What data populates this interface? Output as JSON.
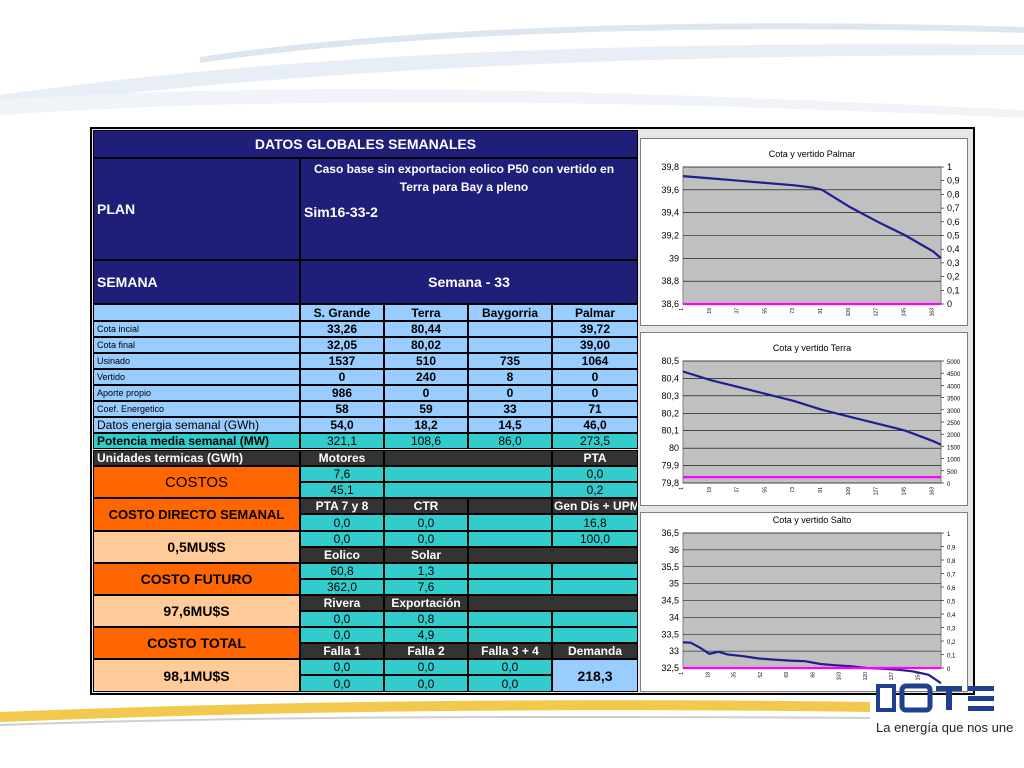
{
  "colors": {
    "navy": "#1f1f7a",
    "light_blue": "#99ccff",
    "teal": "#33cccc",
    "dark_gray": "#333333",
    "orange": "#ff6600",
    "peach": "#ffcc99",
    "series_blue": "#1f1f8f",
    "series_magenta": "#ff00ff",
    "plot_bg": "#c0c0c0"
  },
  "table": {
    "title": "DATOS GLOBALES SEMANALES",
    "plan_label": "PLAN",
    "plan_value": "Sim16-33-2",
    "plan_desc": "Caso base sin exportacion eolico P50 con vertido en Terra para Bay a pleno",
    "semana_label": "SEMANA",
    "semana_value": "Semana - 33",
    "plants": [
      "S. Grande",
      "Terra",
      "Baygorria",
      "Palmar"
    ],
    "rows": [
      {
        "label": "Cota incial",
        "values": [
          "33,26",
          "80,44",
          "",
          "39,72"
        ]
      },
      {
        "label": "Cota final",
        "values": [
          "32,05",
          "80,02",
          "",
          "39,00"
        ]
      },
      {
        "label": "Usinado",
        "values": [
          "1537",
          "510",
          "735",
          "1064"
        ]
      },
      {
        "label": "Vertido",
        "values": [
          "0",
          "240",
          "8",
          "0"
        ]
      },
      {
        "label": "Aporte propio",
        "values": [
          "986",
          "0",
          "0",
          "0"
        ]
      },
      {
        "label": "Coef. Energetico",
        "values": [
          "58",
          "59",
          "33",
          "71"
        ]
      },
      {
        "label": "Datos energia semanal  (GWh)",
        "values": [
          "54,0",
          "18,2",
          "14,5",
          "46,0"
        ]
      },
      {
        "label": "Potencia media semanal (MW)",
        "values": [
          "321,1",
          "108,6",
          "86,0",
          "273,5"
        ]
      }
    ],
    "termicas_label": "Unidades termicas (GWh)",
    "motores_label": "Motores",
    "pta_label": "PTA",
    "motores_values": [
      "7,6",
      "45,1"
    ],
    "pta_values": [
      "0,0",
      "0,2"
    ],
    "costos_label": "COSTOS",
    "costo_directo_label": "COSTO DIRECTO SEMANAL",
    "costo_directo_value": "0,5MU$S",
    "costo_futuro_label": "COSTO FUTURO",
    "costo_futuro_value": "97,6MU$S",
    "costo_total_label": "COSTO TOTAL",
    "costo_total_value": "98,1MU$S",
    "pta78_label": "PTA 7 y 8",
    "ctr_label": "CTR",
    "gendis_label": "Gen Dis + UPM",
    "pta78_values": [
      "0,0",
      "0,0"
    ],
    "ctr_values": [
      "0,0",
      "0,0"
    ],
    "gendis_values": [
      "16,8",
      "100,0"
    ],
    "eolico_label": "Eolico",
    "solar_label": "Solar",
    "eolico_values": [
      "60,8",
      "362,0"
    ],
    "solar_values": [
      "1,3",
      "7,6"
    ],
    "rivera_label": "Rivera",
    "export_label": "Exportación",
    "rivera_values": [
      "0,0",
      "0,0"
    ],
    "export_values": [
      "0,8",
      "4,9"
    ],
    "falla1_label": "Falla 1",
    "falla2_label": "Falla 2",
    "falla34_label": "Falla 3 + 4",
    "demanda_label": "Demanda",
    "falla1_values": [
      "0,0",
      "0,0"
    ],
    "falla2_values": [
      "0,0",
      "0,0"
    ],
    "falla34_values": [
      "0,0",
      "0,0"
    ],
    "demanda_value": "218,3"
  },
  "brand": {
    "tagline": "La energía que nos une"
  },
  "chart_data": [
    {
      "type": "line",
      "title": "Cota y vertido  Palmar",
      "ylim": [
        38.6,
        39.8
      ],
      "yticks": [
        "39,8",
        "39,6",
        "39,4",
        "39,2",
        "39",
        "38,8",
        "38,6"
      ],
      "y2lim": [
        0,
        1
      ],
      "y2ticks": [
        "1",
        "0,9",
        "0,8",
        "0,7",
        "0,6",
        "0,5",
        "0,4",
        "0,3",
        "0,2",
        "0,1",
        "0"
      ],
      "xlim": [
        1,
        168
      ],
      "xticks": [
        "1",
        "19",
        "37",
        "55",
        "73",
        "91",
        "109",
        "127",
        "145",
        "163"
      ],
      "grid": true,
      "series": [
        {
          "axis": "y",
          "color": "#1f1f8f",
          "x": [
            1,
            19,
            37,
            55,
            73,
            85,
            91,
            109,
            127,
            145,
            163,
            168
          ],
          "values": [
            39.72,
            39.7,
            39.68,
            39.66,
            39.64,
            39.62,
            39.6,
            39.45,
            39.32,
            39.2,
            39.06,
            39.0
          ]
        },
        {
          "axis": "y2",
          "color": "#ff00ff",
          "x": [
            1,
            168
          ],
          "values": [
            0,
            0
          ]
        }
      ]
    },
    {
      "type": "line",
      "title": "Cota y vertido Terra",
      "ylim": [
        79.8,
        80.5
      ],
      "yticks": [
        "80,5",
        "80,4",
        "80,3",
        "80,2",
        "80,1",
        "80",
        "79,9",
        "79,8"
      ],
      "y2lim": [
        0,
        5000
      ],
      "y2ticks": [
        "5000",
        "4500",
        "4000",
        "3500",
        "3000",
        "2500",
        "2000",
        "1500",
        "1000",
        "500",
        "0"
      ],
      "xlim": [
        1,
        168
      ],
      "xticks": [
        "1",
        "19",
        "37",
        "55",
        "73",
        "91",
        "109",
        "127",
        "145",
        "163"
      ],
      "grid": true,
      "series": [
        {
          "axis": "y",
          "color": "#1f1f8f",
          "x": [
            1,
            19,
            37,
            55,
            73,
            91,
            109,
            127,
            145,
            163,
            168
          ],
          "values": [
            80.44,
            80.39,
            80.35,
            80.31,
            80.27,
            80.22,
            80.18,
            80.14,
            80.1,
            80.04,
            80.02
          ]
        },
        {
          "axis": "y2",
          "color": "#ff00ff",
          "x": [
            1,
            168
          ],
          "values": [
            240,
            240
          ]
        }
      ]
    },
    {
      "type": "line",
      "title": "Cota y vertido Salto",
      "ylim": [
        32.5,
        36.5
      ],
      "yticks": [
        "36,5",
        "36",
        "35,5",
        "35",
        "34,5",
        "34",
        "33,5",
        "33",
        "32,5"
      ],
      "y2lim": [
        0,
        1
      ],
      "y2ticks": [
        "1",
        "0,9",
        "0,8",
        "0,7",
        "0,6",
        "0,5",
        "0,4",
        "0,3",
        "0,2",
        "0,1",
        "0"
      ],
      "xlim": [
        1,
        168
      ],
      "xticks": [
        "1",
        "18",
        "35",
        "52",
        "69",
        "86",
        "103",
        "120",
        "137",
        "154"
      ],
      "grid": true,
      "series": [
        {
          "axis": "y",
          "color": "#1f1f8f",
          "x": [
            1,
            6,
            12,
            18,
            24,
            30,
            40,
            50,
            60,
            70,
            80,
            90,
            100,
            110,
            120,
            130,
            140,
            150,
            160,
            168
          ],
          "values": [
            33.26,
            33.25,
            33.1,
            32.92,
            32.98,
            32.9,
            32.85,
            32.78,
            32.75,
            32.72,
            32.7,
            32.62,
            32.58,
            32.55,
            32.5,
            32.48,
            32.45,
            32.4,
            32.3,
            32.05
          ]
        },
        {
          "axis": "y2",
          "color": "#ff00ff",
          "x": [
            1,
            168
          ],
          "values": [
            0,
            0
          ]
        }
      ]
    }
  ]
}
